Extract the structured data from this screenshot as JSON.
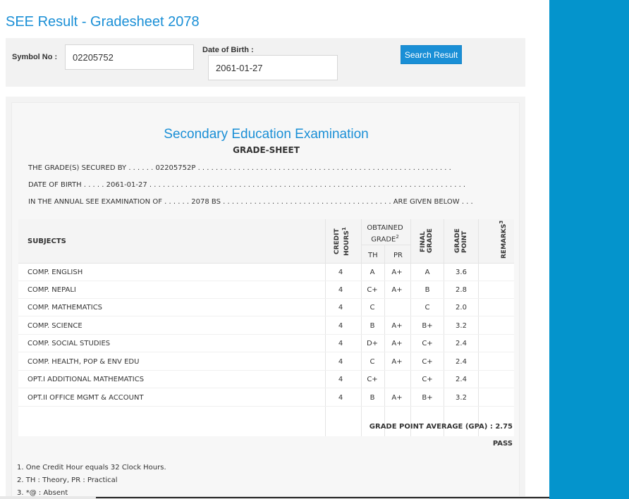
{
  "page": {
    "title": "SEE Result - Gradesheet 2078"
  },
  "search": {
    "symbol_label": "Symbol No :",
    "symbol_value": "02205752",
    "dob_label": "Date of Birth :",
    "dob_value": "2061-01-27",
    "button_label": "Search Result"
  },
  "sheet": {
    "exam_title": "Secondary Education Examination",
    "gradesheet_title": "GRADE-SHEET",
    "line1": "THE GRADE(S) SECURED BY . . . . . . 02205752P . . . . . . . . . . . . . . . . . . . . . . . . . . . . . . . . . . . . . . . . . . . . . . . . . . . . . . . . .",
    "line2": "DATE OF BIRTH . . . . . 2061-01-27 . . . . . . . . . . . . . . . . . . . . . . . . . . . . . . . . . . . . . . . . . . . . . . . . . . . . . . . . . . . . . . . . . . . . . . .",
    "line3": "IN THE ANNUAL SEE EXAMINATION OF . . . . . . 2078 BS . . . . . . . . . . . . . . . . . . . . . . . . . . . . . . . . . . . . . . ARE GIVEN BELOW . . ."
  },
  "table": {
    "headers": {
      "subjects": "SUBJECTS",
      "credit_hours": "CREDIT HOURS",
      "credit_sup": "1",
      "obtained_grade": "OBTAINED GRADE",
      "obtained_sup": "2",
      "th": "TH",
      "pr": "PR",
      "final_grade": "FINAL GRADE",
      "grade_point": "GRADE POINT",
      "remarks": "REMARKS",
      "remarks_sup": "3"
    },
    "rows": [
      {
        "subject": "COMP. ENGLISH",
        "credit": "4",
        "th": "A",
        "pr": "A+",
        "final": "A",
        "gp": "3.6",
        "remarks": ""
      },
      {
        "subject": "COMP. NEPALI",
        "credit": "4",
        "th": "C+",
        "pr": "A+",
        "final": "B",
        "gp": "2.8",
        "remarks": ""
      },
      {
        "subject": "COMP. MATHEMATICS",
        "credit": "4",
        "th": "C",
        "pr": "",
        "final": "C",
        "gp": "2.0",
        "remarks": ""
      },
      {
        "subject": "COMP. SCIENCE",
        "credit": "4",
        "th": "B",
        "pr": "A+",
        "final": "B+",
        "gp": "3.2",
        "remarks": ""
      },
      {
        "subject": "COMP. SOCIAL STUDIES",
        "credit": "4",
        "th": "D+",
        "pr": "A+",
        "final": "C+",
        "gp": "2.4",
        "remarks": ""
      },
      {
        "subject": "COMP. HEALTH, POP & ENV EDU",
        "credit": "4",
        "th": "C",
        "pr": "A+",
        "final": "C+",
        "gp": "2.4",
        "remarks": ""
      },
      {
        "subject": "OPT.I ADDITIONAL MATHEMATICS",
        "credit": "4",
        "th": "C+",
        "pr": "",
        "final": "C+",
        "gp": "2.4",
        "remarks": ""
      },
      {
        "subject": "OPT.II OFFICE MGMT & ACCOUNT",
        "credit": "4",
        "th": "B",
        "pr": "A+",
        "final": "B+",
        "gp": "3.2",
        "remarks": ""
      }
    ]
  },
  "summary": {
    "gpa_label": "GRADE POINT AVERAGE (GPA) : 2.75",
    "result": "PASS"
  },
  "footnotes": [
    "1. One Credit Hour equals 32 Clock Hours.",
    "2. TH : Theory, PR : Practical",
    "3. *@ : Absent"
  ],
  "colors": {
    "accent": "#1a8fd6",
    "side_panel": "#0494cc"
  }
}
